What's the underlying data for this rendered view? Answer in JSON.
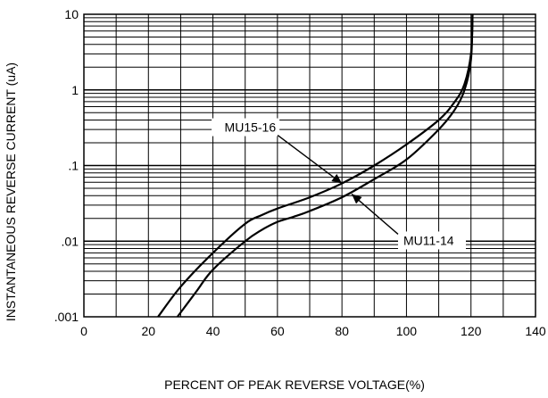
{
  "chart_data": {
    "type": "line",
    "xlabel": "PERCENT OF PEAK REVERSE VOLTAGE(%)",
    "ylabel": "INSTANTANEOUS REVERSE CURRENT (uA)",
    "xlim": [
      0,
      140
    ],
    "ylim": [
      0.001,
      10
    ],
    "yscale": "log",
    "grid": true,
    "x_ticks": [
      0,
      20,
      40,
      60,
      80,
      100,
      120,
      140
    ],
    "x_tick_labels": [
      "0",
      "20",
      "40",
      "60",
      "80",
      "100",
      "120",
      "140"
    ],
    "y_ticks": [
      0.001,
      0.01,
      0.1,
      1,
      10
    ],
    "y_tick_labels": [
      ".001",
      ".01",
      ".1",
      "1",
      "10"
    ],
    "series": [
      {
        "name": "MU15-16",
        "points": [
          [
            23,
            0.001
          ],
          [
            30,
            0.0025
          ],
          [
            40,
            0.007
          ],
          [
            50,
            0.017
          ],
          [
            55,
            0.022
          ],
          [
            60,
            0.027
          ],
          [
            70,
            0.038
          ],
          [
            80,
            0.058
          ],
          [
            90,
            0.1
          ],
          [
            100,
            0.19
          ],
          [
            110,
            0.4
          ],
          [
            115,
            0.7
          ],
          [
            118,
            1.2
          ],
          [
            120,
            3
          ],
          [
            120.5,
            10
          ]
        ]
      },
      {
        "name": "MU11-14",
        "points": [
          [
            29,
            0.001
          ],
          [
            35,
            0.0022
          ],
          [
            40,
            0.0042
          ],
          [
            50,
            0.01
          ],
          [
            55,
            0.014
          ],
          [
            60,
            0.018
          ],
          [
            65,
            0.021
          ],
          [
            70,
            0.025
          ],
          [
            80,
            0.038
          ],
          [
            90,
            0.066
          ],
          [
            100,
            0.12
          ],
          [
            110,
            0.3
          ],
          [
            115,
            0.55
          ],
          [
            118,
            1.0
          ],
          [
            120,
            2.5
          ],
          [
            120.5,
            10
          ]
        ]
      }
    ],
    "annotations": [
      {
        "text": "MU15-16",
        "series": "MU15-16",
        "at": [
          80,
          0.058
        ]
      },
      {
        "text": "MU11-14",
        "series": "MU11-14",
        "at": [
          83,
          0.042
        ]
      }
    ]
  }
}
